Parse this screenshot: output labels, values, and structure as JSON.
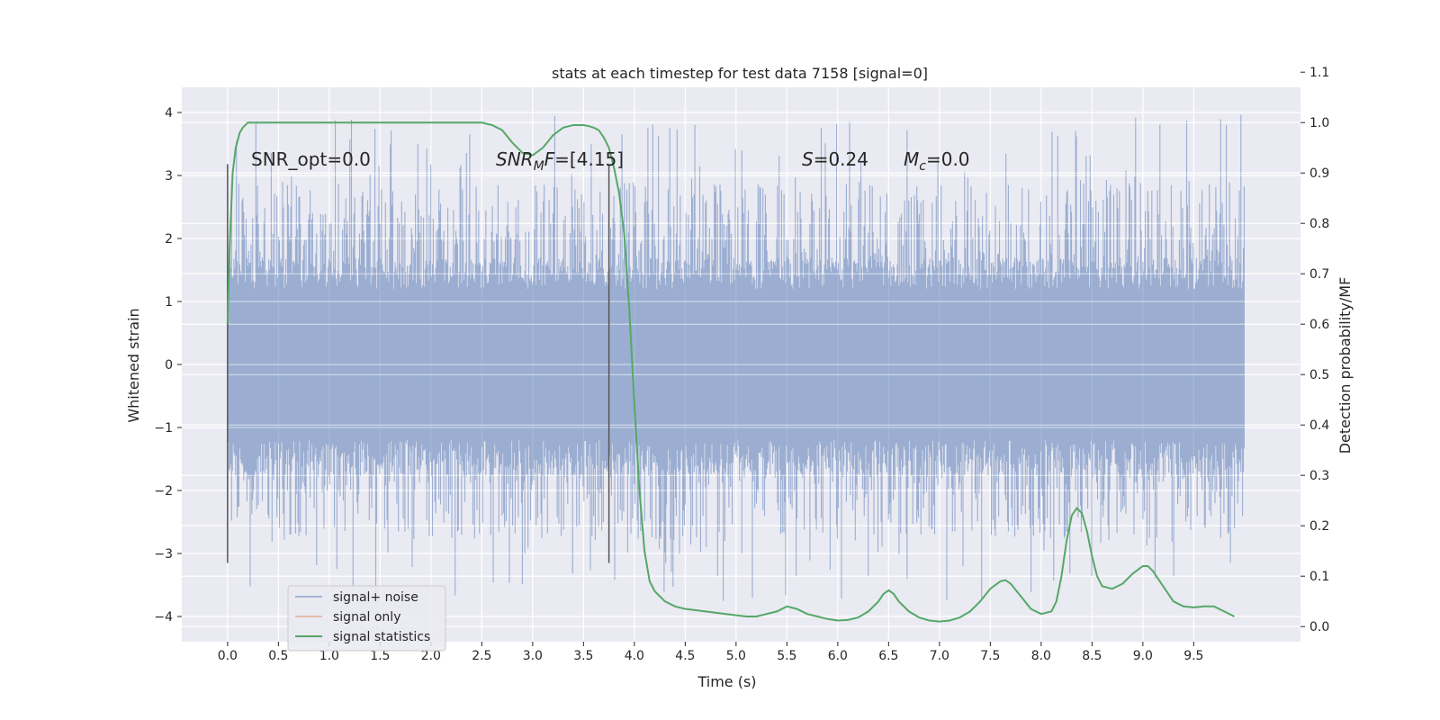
{
  "chart_data": {
    "type": "line",
    "title": "stats at each timestep for test data 7158 [signal=0]",
    "xlabel": "Time (s)",
    "ylabel": "Whitened strain",
    "y2label": "Detection probability/MF",
    "xlim": [
      -0.45,
      10.55
    ],
    "ylim": [
      -4.4,
      4.4
    ],
    "y2lim": [
      -0.03,
      1.07
    ],
    "xticks": [
      "0.0",
      "0.5",
      "1.0",
      "1.5",
      "2.0",
      "2.5",
      "3.0",
      "3.5",
      "4.0",
      "4.5",
      "5.0",
      "5.5",
      "6.0",
      "6.5",
      "7.0",
      "7.5",
      "8.0",
      "8.5",
      "9.0",
      "9.5"
    ],
    "yticks": [
      "4",
      "3",
      "2",
      "1",
      "0",
      "−1",
      "−2",
      "−3",
      "−4"
    ],
    "y2ticks": [
      "1.1",
      "1.0",
      "0.9",
      "0.8",
      "0.7",
      "0.6",
      "0.5",
      "0.4",
      "0.3",
      "0.2",
      "0.1",
      "0.0"
    ],
    "grid": true,
    "legend_position": "lower-left",
    "colors": {
      "noise": "#4c72b0",
      "signal": "#dd8452",
      "stats": "#55a868",
      "vline": "#555555",
      "plot_bg": "#eaeaf2",
      "grid": "#ffffff"
    },
    "annotations": {
      "snr_opt": "SNR_opt=0.0",
      "snr_mf_label": "SNR",
      "snr_mf_sub": "M",
      "snr_mf_tail": "F",
      "snr_mf_value": "=[4.15]",
      "s_label": "S",
      "s_value": "=0.24",
      "mc_label": "M",
      "mc_sub": "c",
      "mc_value": "=0.0"
    },
    "vlines": [
      0.0,
      3.75
    ],
    "series": [
      {
        "name": "signal+ noise",
        "kind": "noise",
        "x_start": 0.0,
        "x_end": 10.0,
        "envelope": "dense whitened noise, bulk within ±2, spikes to about +4 and −4"
      },
      {
        "name": "signal only",
        "kind": "line",
        "x": [],
        "y": []
      },
      {
        "name": "signal statistics",
        "kind": "line",
        "axis": "right",
        "x": [
          0.0,
          0.02,
          0.05,
          0.08,
          0.12,
          0.15,
          0.2,
          0.3,
          0.5,
          1.0,
          1.5,
          2.0,
          2.3,
          2.5,
          2.6,
          2.7,
          2.8,
          2.9,
          3.0,
          3.1,
          3.2,
          3.3,
          3.4,
          3.5,
          3.55,
          3.6,
          3.65,
          3.7,
          3.75,
          3.8,
          3.85,
          3.9,
          3.95,
          4.0,
          4.05,
          4.1,
          4.15,
          4.2,
          4.3,
          4.4,
          4.5,
          4.7,
          4.9,
          5.1,
          5.2,
          5.3,
          5.4,
          5.5,
          5.6,
          5.7,
          5.8,
          5.9,
          6.0,
          6.1,
          6.2,
          6.3,
          6.4,
          6.45,
          6.5,
          6.55,
          6.6,
          6.7,
          6.8,
          6.9,
          7.0,
          7.1,
          7.2,
          7.3,
          7.4,
          7.5,
          7.6,
          7.65,
          7.7,
          7.8,
          7.9,
          8.0,
          8.1,
          8.15,
          8.2,
          8.25,
          8.3,
          8.35,
          8.4,
          8.45,
          8.5,
          8.55,
          8.6,
          8.7,
          8.8,
          8.9,
          9.0,
          9.05,
          9.1,
          9.2,
          9.3,
          9.4,
          9.5,
          9.6,
          9.7,
          9.8,
          9.9
        ],
        "y": [
          0.6,
          0.75,
          0.9,
          0.95,
          0.98,
          0.99,
          1.0,
          1.0,
          1.0,
          1.0,
          1.0,
          1.0,
          1.0,
          1.0,
          0.995,
          0.985,
          0.96,
          0.94,
          0.935,
          0.95,
          0.975,
          0.99,
          0.995,
          0.995,
          0.993,
          0.99,
          0.985,
          0.97,
          0.95,
          0.91,
          0.86,
          0.78,
          0.63,
          0.44,
          0.27,
          0.15,
          0.09,
          0.07,
          0.05,
          0.04,
          0.035,
          0.03,
          0.025,
          0.02,
          0.02,
          0.025,
          0.03,
          0.04,
          0.035,
          0.025,
          0.02,
          0.015,
          0.012,
          0.013,
          0.018,
          0.03,
          0.05,
          0.065,
          0.072,
          0.065,
          0.05,
          0.03,
          0.018,
          0.012,
          0.01,
          0.012,
          0.018,
          0.03,
          0.05,
          0.075,
          0.09,
          0.092,
          0.085,
          0.06,
          0.035,
          0.025,
          0.03,
          0.05,
          0.1,
          0.17,
          0.22,
          0.235,
          0.225,
          0.19,
          0.14,
          0.1,
          0.08,
          0.075,
          0.085,
          0.105,
          0.12,
          0.12,
          0.11,
          0.08,
          0.05,
          0.04,
          0.038,
          0.04,
          0.04,
          0.03,
          0.02
        ]
      }
    ]
  }
}
